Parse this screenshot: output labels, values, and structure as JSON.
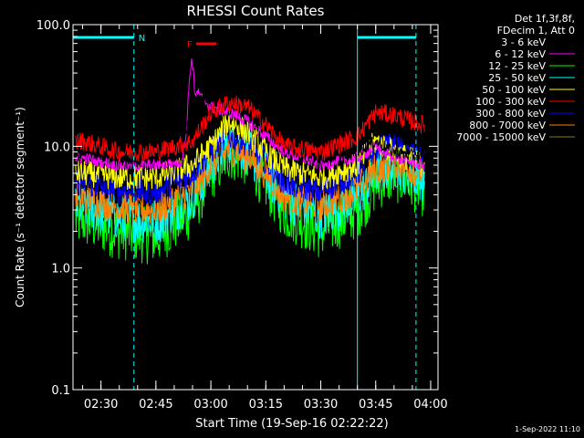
{
  "chart_data": {
    "type": "line",
    "title": "RHESSI Count Rates",
    "xlabel": "Start Time (19-Sep-16 02:22:22)",
    "ylabel": "Count Rate (s⁻¹ detector segment⁻¹)",
    "yscale": "log",
    "ylim": [
      0.1,
      100
    ],
    "xlim": [
      "02:22:22",
      "04:02:00"
    ],
    "y_ticks": [
      "100.0",
      "10.0",
      "1.0",
      "0.1"
    ],
    "x_ticks": [
      "02:30",
      "02:45",
      "03:00",
      "03:15",
      "03:30",
      "03:45",
      "04:00"
    ],
    "grid": false,
    "legend_header": [
      "Det 1f,3f,8f,",
      "FDecim 1, Att 0"
    ],
    "series": [
      {
        "name": "3 - 6 keV",
        "color": "#000000",
        "x": [
          "02:25",
          "02:35",
          "02:45",
          "02:52",
          "02:55",
          "03:00",
          "03:05",
          "03:10",
          "03:15",
          "03:20",
          "03:30",
          "03:40",
          "03:45",
          "03:50",
          "03:58"
        ],
        "y": [
          9,
          8,
          8,
          8.5,
          24,
          26,
          24,
          20,
          15,
          10,
          8,
          9,
          11,
          9,
          8
        ]
      },
      {
        "name": "6 - 12 keV",
        "color": "#ff00ff",
        "x": [
          "02:25",
          "02:35",
          "02:45",
          "02:52",
          "02:55",
          "03:00",
          "03:05",
          "03:10",
          "03:15",
          "03:20",
          "03:30",
          "03:40",
          "03:45",
          "03:50",
          "03:58"
        ],
        "y": [
          8,
          7,
          7,
          7.5,
          30,
          21,
          19,
          16,
          12,
          9,
          7,
          8,
          10,
          8,
          7
        ]
      },
      {
        "name": "12 - 25 keV",
        "color": "#00ff00",
        "x": [
          "02:25",
          "02:35",
          "02:45",
          "02:55",
          "03:00",
          "03:05",
          "03:10",
          "03:15",
          "03:20",
          "03:30",
          "03:40",
          "03:45",
          "03:50",
          "03:58"
        ],
        "y": [
          2.5,
          2,
          1.8,
          3,
          6,
          9,
          8,
          5,
          3,
          2,
          3,
          5,
          6,
          4.5
        ]
      },
      {
        "name": "25 - 50 keV",
        "color": "#00ffff",
        "x": [
          "02:25",
          "02:35",
          "02:45",
          "02:55",
          "03:00",
          "03:05",
          "03:10",
          "03:15",
          "03:20",
          "03:30",
          "03:40",
          "03:45",
          "03:50",
          "03:58"
        ],
        "y": [
          3.2,
          2.6,
          2.4,
          3.8,
          7,
          11,
          9,
          6,
          3.8,
          2.7,
          3.8,
          6,
          7,
          5.5
        ]
      },
      {
        "name": "50 - 100 keV",
        "color": "#ffff00",
        "x": [
          "02:25",
          "02:35",
          "02:45",
          "02:55",
          "03:00",
          "03:05",
          "03:10",
          "03:15",
          "03:20",
          "03:30",
          "03:40",
          "03:45",
          "03:50",
          "03:58"
        ],
        "y": [
          6,
          5.5,
          5.5,
          7,
          10,
          16,
          13,
          9,
          6.5,
          5.5,
          7,
          11,
          9,
          7
        ]
      },
      {
        "name": "100 - 300 keV",
        "color": "#ff0000",
        "x": [
          "02:25",
          "02:35",
          "02:45",
          "02:55",
          "03:00",
          "03:05",
          "03:10",
          "03:15",
          "03:20",
          "03:30",
          "03:40",
          "03:45",
          "03:50",
          "03:58"
        ],
        "y": [
          11,
          9,
          9,
          11,
          19,
          23,
          21,
          15,
          10,
          9,
          12,
          19,
          18,
          15
        ]
      },
      {
        "name": "300 - 800 keV",
        "color": "#0000ff",
        "x": [
          "02:25",
          "02:35",
          "02:45",
          "02:55",
          "03:00",
          "03:05",
          "03:10",
          "03:15",
          "03:20",
          "03:30",
          "03:40",
          "03:45",
          "03:50",
          "03:58"
        ],
        "y": [
          5,
          4.3,
          4.2,
          6,
          9,
          12,
          10.5,
          7.5,
          5,
          4.2,
          6,
          9.5,
          10,
          7.5
        ]
      },
      {
        "name": "800 - 7000 keV",
        "color": "#ff8000",
        "x": [
          "02:25",
          "02:35",
          "02:45",
          "02:55",
          "03:00",
          "03:05",
          "03:10",
          "03:15",
          "03:20",
          "03:30",
          "03:40",
          "03:45",
          "03:50",
          "03:58"
        ],
        "y": [
          3.8,
          3.2,
          3,
          4.5,
          7,
          9.5,
          8.5,
          6,
          3.8,
          3.3,
          4.5,
          6.5,
          7.5,
          6
        ]
      },
      {
        "name": "7000 - 15000 keV",
        "color": "#808000",
        "x": [],
        "y": []
      }
    ],
    "annotations": [
      {
        "text": "N",
        "color": "#00ffff",
        "x_range": [
          "02:22:22",
          "02:39:00"
        ],
        "level": 75
      },
      {
        "text": "F",
        "color": "#ff0000",
        "x_range": [
          "02:56:00",
          "03:01:30"
        ],
        "level": 60
      }
    ],
    "vertical_lines": [
      {
        "x": "02:22:22",
        "style": "solid",
        "color": "#00ffff"
      },
      {
        "x": "02:39:00",
        "style": "dashed",
        "color": "#00ffff"
      },
      {
        "x": "03:40:00",
        "style": "solid",
        "color": "#00ffff"
      },
      {
        "x": "03:56:00",
        "style": "dashed",
        "color": "#00ffff"
      }
    ],
    "extra_night_band": {
      "x_range": [
        "03:40:00",
        "03:56:00"
      ],
      "level": 75
    },
    "footer_date": "1-Sep-2022 11:10"
  }
}
